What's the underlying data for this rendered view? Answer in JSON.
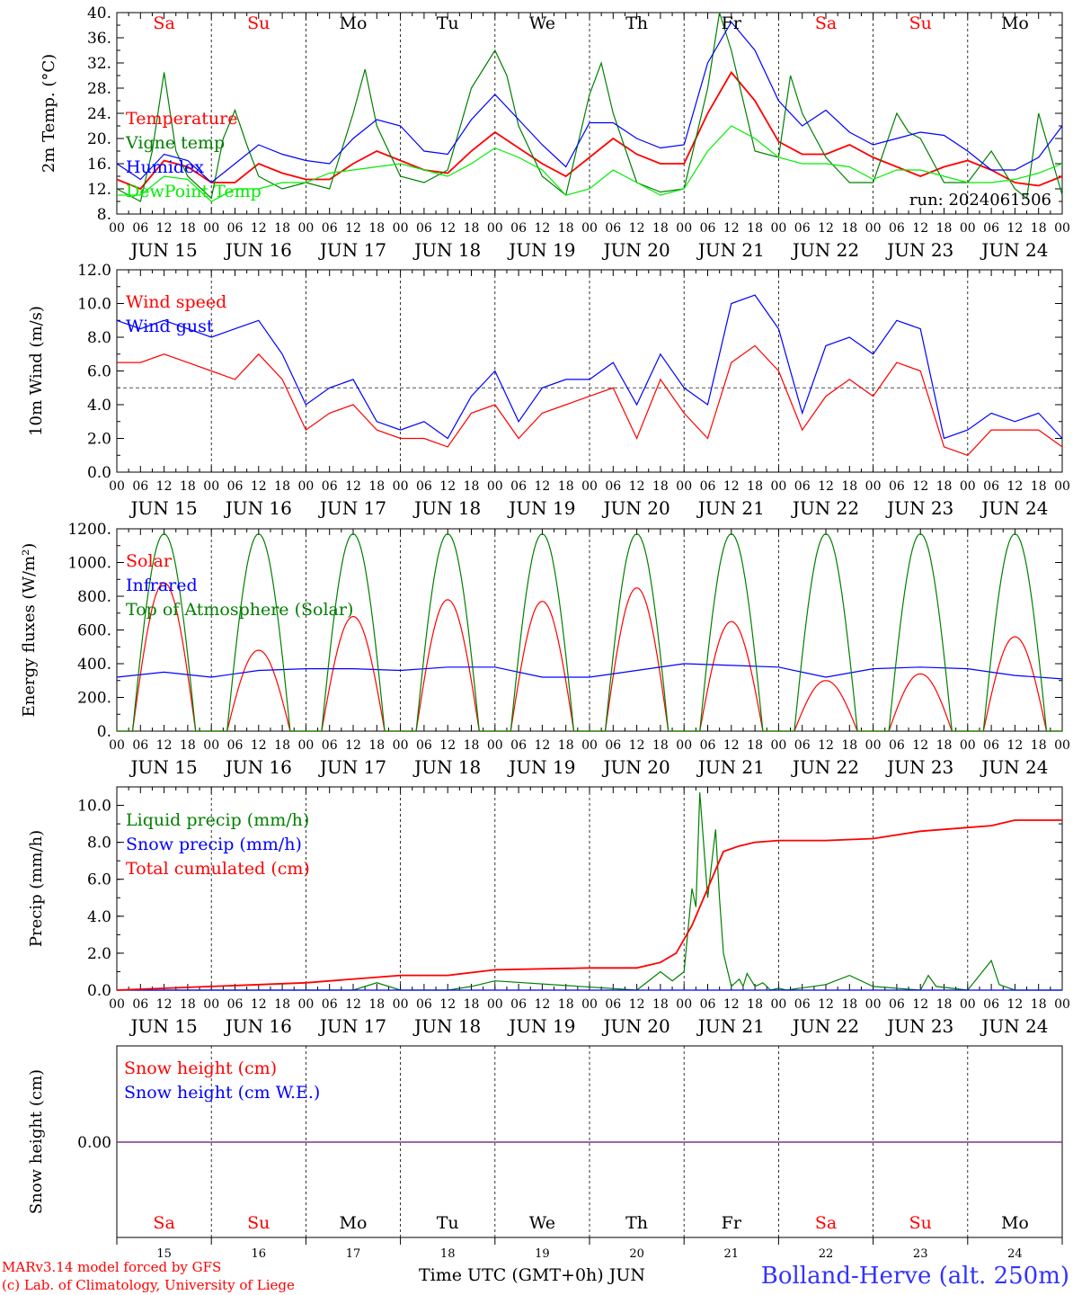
{
  "days": [
    "Sa",
    "Su",
    "Mo",
    "Tu",
    "We",
    "Th",
    "Fr",
    "Sa",
    "Su",
    "Mo"
  ],
  "weekend_color": "#ff0000",
  "weekday_color": "#000000",
  "date_labels": [
    "JUN 15",
    "JUN 16",
    "JUN 17",
    "JUN 18",
    "JUN 19",
    "JUN 20",
    "JUN 21",
    "JUN 22",
    "JUN 23",
    "JUN 24"
  ],
  "hour_ticks": [
    "00",
    "06",
    "12",
    "18"
  ],
  "last_tick": "00",
  "bottom_days": [
    "15",
    "16",
    "17",
    "18",
    "19",
    "20",
    "21",
    "22",
    "23",
    "24"
  ],
  "footer": {
    "model": "MARv3.14 model forced by GFS",
    "credit": "(c) Lab. of Climatology, University of Liege",
    "axis_title": "Time UTC (GMT+0h) JUN",
    "station": "Bolland-Herve (alt. 250m)"
  },
  "chart_data": [
    {
      "type": "line",
      "ylabel": "2m Temp. (°C)",
      "ylim": [
        8,
        40
      ],
      "yticks": [
        "8.",
        "12.",
        "16.",
        "20.",
        "24.",
        "28.",
        "32.",
        "36.",
        "40."
      ],
      "annotation": "run: 2024061506",
      "x_unit": "hours from JUN 15 00 UTC",
      "series": [
        {
          "name": "Temperature",
          "color": "#ff0000",
          "x": [
            0,
            6,
            12,
            18,
            24,
            30,
            36,
            42,
            48,
            54,
            60,
            66,
            72,
            78,
            84,
            90,
            96,
            102,
            108,
            114,
            120,
            126,
            132,
            138,
            144,
            150,
            156,
            162,
            168,
            174,
            180,
            186,
            192,
            198,
            204,
            210,
            216,
            222,
            228,
            234,
            240
          ],
          "y": [
            13.5,
            12,
            16.5,
            15.5,
            13,
            13,
            16,
            14.5,
            13.5,
            13.5,
            16,
            18,
            16.5,
            15,
            14.5,
            18,
            21,
            18.5,
            16,
            14,
            17,
            20,
            17.5,
            16,
            16,
            24,
            30.5,
            26,
            19.5,
            17.5,
            17.5,
            19,
            17,
            15.5,
            14,
            15.5,
            16.5,
            15,
            13,
            12.5,
            14
          ]
        },
        {
          "name": "Vigne temp",
          "color": "#008000",
          "x": [
            0,
            6,
            9,
            12,
            15,
            18,
            24,
            27,
            30,
            33,
            36,
            42,
            48,
            54,
            60,
            63,
            66,
            72,
            78,
            84,
            90,
            96,
            99,
            102,
            108,
            114,
            120,
            123,
            126,
            132,
            138,
            144,
            150,
            153,
            156,
            162,
            168,
            171,
            174,
            180,
            186,
            192,
            198,
            201,
            204,
            210,
            216,
            222,
            228,
            231,
            234,
            240
          ],
          "y": [
            12,
            10,
            18,
            30.5,
            18,
            14,
            10.5,
            20,
            24.5,
            19,
            14,
            12,
            13,
            12,
            24,
            31,
            22,
            14,
            13,
            15,
            28,
            34,
            30,
            22,
            14,
            11,
            27,
            32,
            24,
            13,
            11.5,
            12,
            28,
            40,
            34,
            18,
            17,
            30,
            24,
            17,
            13,
            13,
            24,
            21,
            20,
            13,
            13,
            18,
            12,
            10.5,
            24,
            11
          ]
        },
        {
          "name": "Humidex",
          "color": "#0000ff",
          "x": [
            0,
            6,
            12,
            18,
            24,
            30,
            36,
            42,
            48,
            54,
            60,
            66,
            72,
            78,
            84,
            90,
            96,
            102,
            108,
            114,
            120,
            126,
            132,
            138,
            144,
            150,
            156,
            162,
            168,
            174,
            180,
            186,
            192,
            198,
            204,
            210,
            216,
            222,
            228,
            234,
            240
          ],
          "y": [
            16,
            13.5,
            17.5,
            16.5,
            13,
            16,
            19,
            17.5,
            16.5,
            16,
            20,
            23,
            22,
            18,
            17.5,
            23,
            27,
            23,
            19,
            15.5,
            22.5,
            22.5,
            20,
            18.5,
            19,
            32,
            38.5,
            34,
            26,
            22,
            24.5,
            21,
            19,
            20,
            21,
            20.5,
            18,
            15,
            15,
            17,
            22
          ]
        },
        {
          "name": "DewPoint Temp",
          "color": "#00ee00",
          "x": [
            0,
            6,
            12,
            18,
            24,
            30,
            36,
            42,
            48,
            54,
            60,
            66,
            72,
            78,
            84,
            90,
            96,
            102,
            108,
            114,
            120,
            126,
            132,
            138,
            144,
            150,
            156,
            162,
            168,
            174,
            180,
            186,
            192,
            198,
            204,
            210,
            216,
            222,
            228,
            234,
            240
          ],
          "y": [
            11,
            11,
            14,
            13.5,
            10,
            12,
            12,
            13,
            13,
            14.5,
            15,
            15.5,
            16,
            15,
            14,
            16,
            18.5,
            17,
            15,
            11,
            12,
            15,
            13,
            11,
            12,
            18,
            22,
            20,
            17,
            16,
            16,
            15.5,
            13.5,
            15,
            15,
            14,
            13,
            13,
            13.5,
            14.5,
            16
          ]
        }
      ]
    },
    {
      "type": "line",
      "ylabel": "10m Wind (m/s)",
      "ylim": [
        0,
        12
      ],
      "yticks": [
        "0.0",
        "2.0",
        "4.0",
        "6.0",
        "8.0",
        "10.0",
        "12.0"
      ],
      "reference_line": 5,
      "series": [
        {
          "name": "Wind speed",
          "color": "#ff0000",
          "x": [
            0,
            6,
            12,
            18,
            24,
            30,
            36,
            42,
            48,
            54,
            60,
            66,
            72,
            78,
            84,
            90,
            96,
            102,
            108,
            114,
            120,
            126,
            132,
            138,
            144,
            150,
            156,
            162,
            168,
            174,
            180,
            186,
            192,
            198,
            204,
            210,
            216,
            222,
            228,
            234,
            240
          ],
          "y": [
            6.5,
            6.5,
            7,
            6.5,
            6,
            5.5,
            7,
            5.5,
            2.5,
            3.5,
            4,
            2.5,
            2,
            2,
            1.5,
            3.5,
            4,
            2,
            3.5,
            4,
            4.5,
            5,
            2,
            5.5,
            3.5,
            2,
            6.5,
            7.5,
            6,
            2.5,
            4.5,
            5.5,
            4.5,
            6.5,
            6,
            1.5,
            1,
            2.5,
            2.5,
            2.5,
            1.5
          ]
        },
        {
          "name": "Wind gust",
          "color": "#0000ff",
          "x": [
            0,
            6,
            12,
            18,
            24,
            30,
            36,
            42,
            48,
            54,
            60,
            66,
            72,
            78,
            84,
            90,
            96,
            102,
            108,
            114,
            120,
            126,
            132,
            138,
            144,
            150,
            156,
            162,
            168,
            174,
            180,
            186,
            192,
            198,
            204,
            210,
            216,
            222,
            228,
            234,
            240
          ],
          "y": [
            9,
            8.5,
            9,
            8.5,
            8,
            8.5,
            9,
            7,
            4,
            5,
            5.5,
            3,
            2.5,
            3,
            2,
            4.5,
            6,
            3,
            5,
            5.5,
            5.5,
            6.5,
            4,
            7,
            5,
            4,
            10,
            10.5,
            8.5,
            3.5,
            7.5,
            8,
            7,
            9,
            8.5,
            2,
            2.5,
            3.5,
            3,
            3.5,
            2
          ]
        }
      ]
    },
    {
      "type": "line",
      "ylabel": "Energy fluxes (W/m²)",
      "ylim": [
        0,
        1200
      ],
      "yticks": [
        "0.",
        "200.",
        "400.",
        "600.",
        "800.",
        "1000.",
        "1200."
      ],
      "series": [
        {
          "name": "Solar",
          "color": "#ff0000",
          "peaks": [
            880,
            480,
            680,
            780,
            770,
            850,
            650,
            300,
            340,
            560
          ]
        },
        {
          "name": "Infrared",
          "color": "#0000ff",
          "x": [
            0,
            12,
            24,
            36,
            48,
            60,
            72,
            84,
            96,
            108,
            120,
            132,
            144,
            156,
            168,
            180,
            192,
            204,
            216,
            228,
            240
          ],
          "y": [
            320,
            350,
            320,
            360,
            370,
            370,
            360,
            380,
            380,
            320,
            320,
            360,
            400,
            390,
            380,
            320,
            370,
            380,
            370,
            330,
            310
          ]
        },
        {
          "name": "Top of Atmosphere (Solar)",
          "color": "#008000",
          "peaks": [
            1170,
            1170,
            1170,
            1170,
            1170,
            1170,
            1170,
            1170,
            1170,
            1170
          ]
        }
      ]
    },
    {
      "type": "line",
      "ylabel": "Precip (mm/h)",
      "ylim": [
        0,
        11
      ],
      "yticks": [
        "0.0",
        "2.0",
        "4.0",
        "6.0",
        "8.0",
        "10.0"
      ],
      "series": [
        {
          "name": "Liquid precip (mm/h)",
          "color": "#008000",
          "x": [
            0,
            60,
            66,
            72,
            84,
            90,
            96,
            132,
            138,
            141,
            144,
            146,
            147,
            148,
            150,
            152,
            153,
            154,
            156,
            158,
            159,
            160,
            162,
            164,
            166,
            168,
            170,
            180,
            186,
            192,
            204,
            206,
            208,
            216,
            222,
            224,
            228,
            240
          ],
          "y": [
            0,
            0,
            0.4,
            0,
            0,
            0.2,
            0.5,
            0,
            1,
            0.5,
            1,
            5.5,
            4.5,
            10.7,
            5,
            8.7,
            5,
            2,
            0.2,
            0.6,
            0.2,
            0.9,
            0.2,
            0.4,
            0,
            0.1,
            0,
            0.3,
            0.8,
            0.2,
            0,
            0.8,
            0.2,
            0,
            1.6,
            0.3,
            0,
            0
          ]
        },
        {
          "name": "Snow precip (mm/h)",
          "color": "#0000ff",
          "x": [
            0,
            240
          ],
          "y": [
            0,
            0
          ]
        },
        {
          "name": "Total cumulated (cm)",
          "color": "#ff0000",
          "x": [
            0,
            24,
            48,
            72,
            84,
            96,
            120,
            132,
            138,
            142,
            146,
            150,
            154,
            158,
            162,
            168,
            180,
            192,
            204,
            216,
            222,
            228,
            240
          ],
          "y": [
            0,
            0.2,
            0.4,
            0.8,
            0.8,
            1.1,
            1.2,
            1.2,
            1.5,
            2,
            3.5,
            5.5,
            7.5,
            7.8,
            8,
            8.1,
            8.1,
            8.2,
            8.6,
            8.8,
            8.9,
            9.2,
            9.2
          ]
        }
      ]
    },
    {
      "type": "line",
      "ylabel": "Snow height (cm)",
      "yticks": [
        "0.00"
      ],
      "series": [
        {
          "name": "Snow height (cm)",
          "color": "#ff0000",
          "x": [
            0,
            240
          ],
          "y": [
            0,
            0
          ]
        },
        {
          "name": "Snow height (cm W.E.)",
          "color": "#0000ff",
          "x": [
            0,
            240
          ],
          "y": [
            0,
            0
          ]
        }
      ]
    }
  ]
}
